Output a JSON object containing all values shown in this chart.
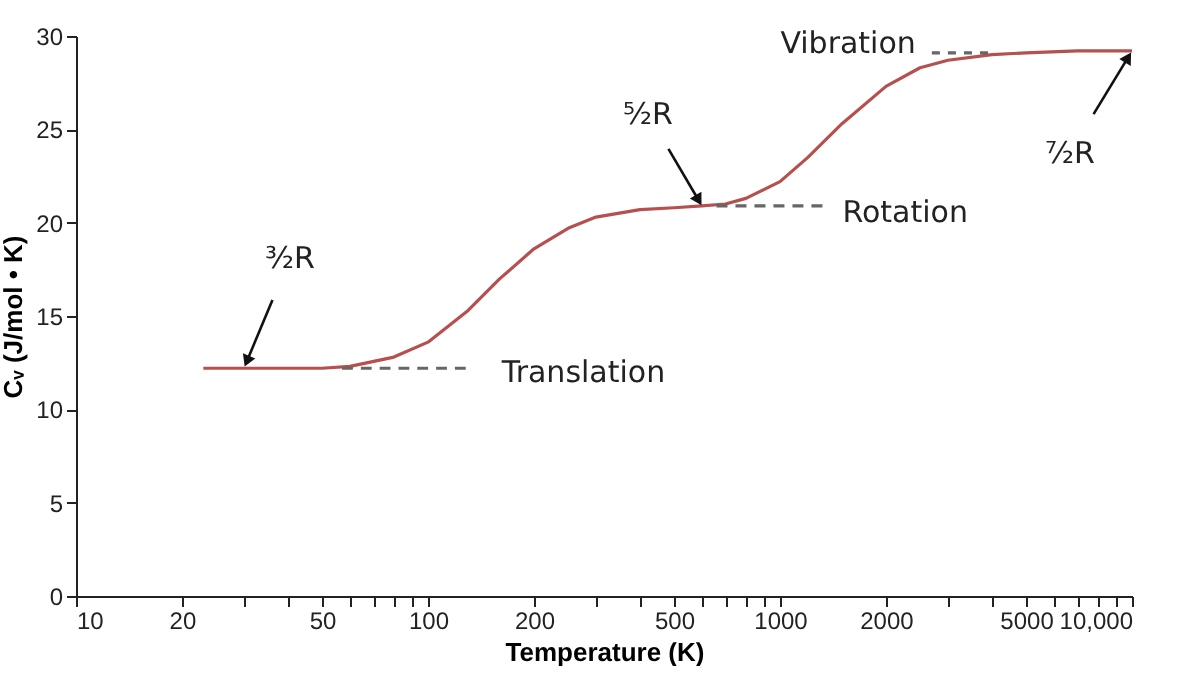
{
  "chart_data": {
    "type": "line",
    "xlabel": "Temperature (K)",
    "ylabel": "Cᵥ (J/mol • K)",
    "log": "x",
    "grid": false,
    "marker": "none",
    "xlim": [
      10,
      10000
    ],
    "ylim": [
      0,
      30
    ],
    "xticks": [
      10,
      20,
      {
        "value": 30,
        "label": null
      },
      {
        "value": 40,
        "label": null
      },
      50,
      {
        "value": 60,
        "label": null
      },
      {
        "value": 70,
        "label": null
      },
      {
        "value": 80,
        "label": null
      },
      {
        "value": 90,
        "label": null
      },
      100,
      200,
      {
        "value": 300,
        "label": null
      },
      {
        "value": 400,
        "label": null
      },
      500,
      {
        "value": 600,
        "label": null
      },
      {
        "value": 700,
        "label": null
      },
      {
        "value": 800,
        "label": null
      },
      {
        "value": 900,
        "label": null
      },
      1000,
      2000,
      {
        "value": 3000,
        "label": null
      },
      {
        "value": 4000,
        "label": null
      },
      5000,
      {
        "value": 6000,
        "label": null
      },
      {
        "value": 7000,
        "label": null
      },
      {
        "value": 8000,
        "label": null
      },
      {
        "value": 9000,
        "label": null
      },
      {
        "value": 10000,
        "label": "10,000"
      }
    ],
    "yticks": [
      0,
      5,
      10,
      15,
      20,
      25,
      30
    ],
    "series": [
      {
        "color": "#b5504f",
        "line_style": "solid",
        "x": [
          23,
          50,
          60,
          80,
          100,
          130,
          160,
          200,
          250,
          300,
          400,
          500,
          600,
          700,
          800,
          1000,
          1200,
          1500,
          2000,
          2500,
          3000,
          4000,
          5000,
          7000,
          10000
        ],
        "values": [
          12.2,
          12.2,
          12.3,
          12.8,
          13.6,
          15.3,
          17.0,
          18.6,
          19.7,
          20.3,
          20.7,
          20.8,
          20.9,
          21.0,
          21.3,
          22.2,
          23.5,
          25.3,
          27.3,
          28.3,
          28.7,
          29.0,
          29.1,
          29.2,
          29.2
        ]
      },
      {
        "color": "#666666",
        "line_style": "dashed",
        "x": [
          57,
          128
        ],
        "values": [
          12.2,
          12.2
        ]
      },
      {
        "color": "#666666",
        "line_style": "dashed",
        "x": [
          660,
          1320
        ],
        "values": [
          20.9,
          20.9
        ]
      },
      {
        "color": "#666666",
        "line_style": "dashed",
        "x": [
          2700,
          3900
        ],
        "values": [
          29.1,
          29.1
        ]
      }
    ],
    "annotations": [
      {
        "text": "³⁄₂R",
        "x": 30,
        "y": 12.2
      },
      {
        "text": "⁵⁄₂R",
        "x": 600,
        "y": 20.9
      },
      {
        "text": "⁷⁄₂R",
        "x": 10000,
        "y": 29.2
      },
      {
        "text": "Translation",
        "x": 128,
        "y": 12.2
      },
      {
        "text": "Rotation",
        "x": 1320,
        "y": 20.9
      },
      {
        "text": "Vibration",
        "x": 2700,
        "y": 29.1
      }
    ]
  }
}
